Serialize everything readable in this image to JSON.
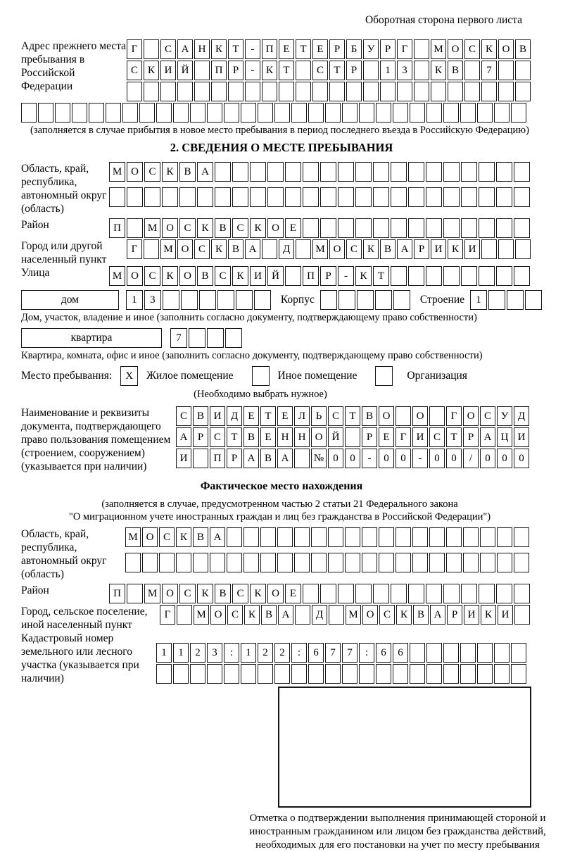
{
  "header": {
    "note": "Оборотная сторона первого листа"
  },
  "prev_address": {
    "label": "Адрес прежнего места пребывания в Российской Федерации",
    "row1": [
      "Г",
      "",
      "С",
      "А",
      "Н",
      "К",
      "Т",
      "-",
      "П",
      "Е",
      "Т",
      "Е",
      "Р",
      "Б",
      "У",
      "Р",
      "Г",
      "",
      "М",
      "О",
      "С",
      "К",
      "О",
      "В"
    ],
    "row2": [
      "С",
      "К",
      "И",
      "Й",
      "",
      "П",
      "Р",
      "-",
      "К",
      "Т",
      "",
      "С",
      "Т",
      "Р",
      "",
      "1",
      "3",
      "",
      "К",
      "В",
      "",
      "7",
      "",
      ""
    ],
    "row3": [
      "",
      "",
      "",
      "",
      "",
      "",
      "",
      "",
      "",
      "",
      "",
      "",
      "",
      "",
      "",
      "",
      "",
      "",
      "",
      "",
      "",
      "",
      "",
      ""
    ],
    "row4": [
      "",
      "",
      "",
      "",
      "",
      "",
      "",
      "",
      "",
      "",
      "",
      "",
      "",
      "",
      "",
      "",
      "",
      "",
      "",
      "",
      "",
      "",
      "",
      "",
      "",
      "",
      "",
      "",
      "",
      ""
    ],
    "caption": "(заполняется в случае прибытия в новое место пребывания в период последнего въезда в Российскую Федерацию)"
  },
  "section2": {
    "title": "2. СВЕДЕНИЯ О МЕСТЕ ПРЕБЫВАНИЯ",
    "region_label": "Область, край, республика, автономный округ (область)",
    "region_row1": [
      "М",
      "О",
      "С",
      "К",
      "В",
      "А",
      "",
      "",
      "",
      "",
      "",
      "",
      "",
      "",
      "",
      "",
      "",
      "",
      "",
      "",
      "",
      "",
      "",
      ""
    ],
    "region_row2": [
      "",
      "",
      "",
      "",
      "",
      "",
      "",
      "",
      "",
      "",
      "",
      "",
      "",
      "",
      "",
      "",
      "",
      "",
      "",
      "",
      "",
      "",
      "",
      ""
    ],
    "district_label": "Район",
    "district_row": [
      "П",
      "",
      "М",
      "О",
      "С",
      "К",
      "В",
      "С",
      "К",
      "О",
      "Е",
      "",
      "",
      "",
      "",
      "",
      "",
      "",
      "",
      "",
      "",
      "",
      "",
      ""
    ],
    "city_label": "Город или другой населенный пункт",
    "city_row": [
      "Г",
      "",
      "М",
      "О",
      "С",
      "К",
      "В",
      "А",
      "",
      "Д",
      "",
      "М",
      "О",
      "С",
      "К",
      "В",
      "А",
      "Р",
      "И",
      "К",
      "И",
      "",
      "",
      ""
    ],
    "street_label": "Улица",
    "street_row": [
      "М",
      "О",
      "С",
      "К",
      "О",
      "В",
      "С",
      "К",
      "И",
      "Й",
      "",
      "П",
      "Р",
      "-",
      "К",
      "Т",
      "",
      "",
      "",
      "",
      "",
      "",
      "",
      ""
    ],
    "house": {
      "box_label": "дом",
      "house_cells": [
        "1",
        "3",
        "",
        "",
        "",
        "",
        "",
        ""
      ],
      "korpus_label": "Корпус",
      "korpus_cells": [
        "",
        "",
        "",
        "",
        ""
      ],
      "stroenie_label": "Строение",
      "stroenie_cells": [
        "1",
        "",
        "",
        ""
      ],
      "caption": "Дом, участок, владение и иное (заполнить согласно документу, подтверждающему право собственности)"
    },
    "apartment": {
      "box_label": "квартира",
      "cells": [
        "7",
        "",
        "",
        ""
      ],
      "caption": "Квартира, комната, офис и иное (заполнить согласно документу, подтверждающему право собственности)"
    },
    "stay_type": {
      "label": "Место пребывания:",
      "options": [
        {
          "mark": "X",
          "label": "Жилое помещение"
        },
        {
          "mark": "",
          "label": "Иное помещение"
        },
        {
          "mark": "",
          "label": "Организация"
        }
      ],
      "caption": "(Необходимо выбрать нужное)"
    },
    "document": {
      "label": "Наименование и реквизиты документа, подтверждающего право пользования помещением (строением, сооружением) (указывается при наличии)",
      "row1": [
        "С",
        "В",
        "И",
        "Д",
        "Е",
        "Т",
        "Е",
        "Л",
        "Ь",
        "С",
        "Т",
        "В",
        "О",
        "",
        "О",
        "",
        "Г",
        "О",
        "С",
        "У",
        "Д"
      ],
      "row2": [
        "А",
        "Р",
        "С",
        "Т",
        "В",
        "Е",
        "Н",
        "Н",
        "О",
        "Й",
        "",
        "Р",
        "Е",
        "Г",
        "И",
        "С",
        "Т",
        "Р",
        "А",
        "Ц",
        "И"
      ],
      "row3": [
        "И",
        "",
        "П",
        "Р",
        "А",
        "В",
        "А",
        "",
        "№",
        "0",
        "0",
        "-",
        "0",
        "0",
        "-",
        "0",
        "0",
        "/",
        "0",
        "0",
        "0"
      ]
    }
  },
  "actual_location": {
    "title": "Фактическое место нахождения",
    "caption1": "(заполняется в случае, предусмотренном частью 2 статьи 21 Федерального закона",
    "caption2": "\"О миграционном учете иностранных граждан и лиц без гражданства в Российской Федерации\")",
    "region_label": "Область, край, республика, автономный округ (область)",
    "region_row1": [
      "М",
      "О",
      "С",
      "К",
      "В",
      "А",
      "",
      "",
      "",
      "",
      "",
      "",
      "",
      "",
      "",
      "",
      "",
      "",
      "",
      "",
      "",
      "",
      "",
      ""
    ],
    "region_row2": [
      "",
      "",
      "",
      "",
      "",
      "",
      "",
      "",
      "",
      "",
      "",
      "",
      "",
      "",
      "",
      "",
      "",
      "",
      "",
      "",
      "",
      "",
      "",
      ""
    ],
    "district_label": "Район",
    "district_row": [
      "П",
      "",
      "М",
      "О",
      "С",
      "К",
      "В",
      "С",
      "К",
      "О",
      "Е",
      "",
      "",
      "",
      "",
      "",
      "",
      "",
      "",
      "",
      "",
      "",
      "",
      ""
    ],
    "city_label": "Город, сельское поселение, иной населенный пункт",
    "city_row": [
      "Г",
      "",
      "М",
      "О",
      "С",
      "К",
      "В",
      "А",
      "",
      "Д",
      "",
      "М",
      "О",
      "С",
      "К",
      "В",
      "А",
      "Р",
      "И",
      "К",
      "И",
      ""
    ],
    "cadastre_label": "Кадастровый номер земельного или лесного участка (указывается при наличии)",
    "cadastre_row1": [
      "1",
      "1",
      "2",
      "3",
      ":",
      "1",
      "2",
      "2",
      ":",
      "6",
      "7",
      "7",
      ":",
      "6",
      "6",
      "",
      "",
      "",
      "",
      "",
      "",
      ""
    ],
    "cadastre_row2": [
      "",
      "",
      "",
      "",
      "",
      "",
      "",
      "",
      "",
      "",
      "",
      "",
      "",
      "",
      "",
      "",
      "",
      "",
      "",
      "",
      "",
      ""
    ],
    "stamp_caption": "Отметка о подтверждении выполнения принимающей стороной и иностранным гражданином или лицом без гражданства действий, необходимых для его постановки на учет по месту пребывания"
  }
}
